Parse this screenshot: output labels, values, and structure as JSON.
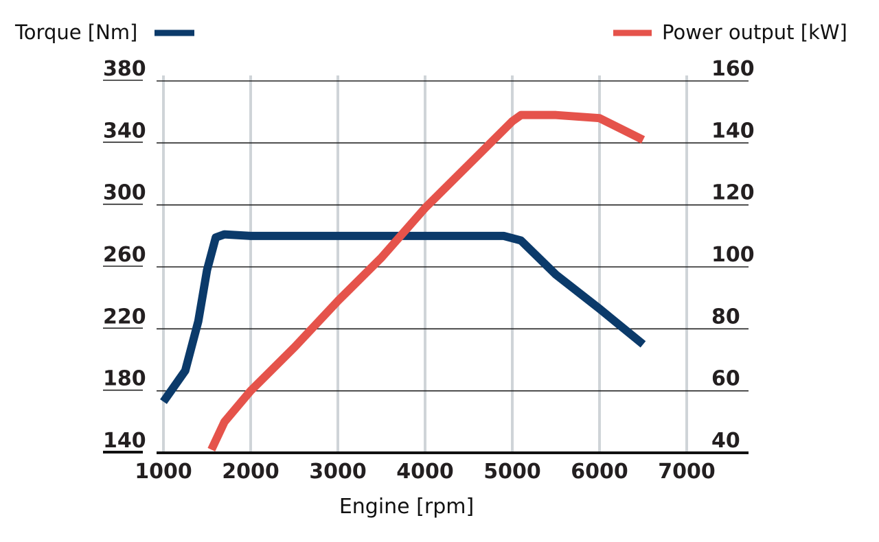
{
  "chart_data": {
    "type": "line",
    "xlabel": "Engine [rpm]",
    "x_ticks": [
      "1000",
      "2000",
      "3000",
      "4000",
      "5000",
      "6000",
      "7000"
    ],
    "xlim": [
      900,
      7100
    ],
    "y_left": {
      "label": "Torque [Nm]",
      "ticks": [
        "140",
        "180",
        "220",
        "260",
        "300",
        "340",
        "380"
      ],
      "ylim": [
        140,
        380
      ]
    },
    "y_right": {
      "label": "Power output [kW]",
      "ticks": [
        "40",
        "60",
        "80",
        "100",
        "120",
        "140",
        "160"
      ],
      "ylim": [
        40,
        160
      ]
    },
    "grid": {
      "vertical": true,
      "horizontal": true
    },
    "legend": {
      "left": "top-left",
      "right": "top-right"
    },
    "series": [
      {
        "name": "Torque [Nm]",
        "axis": "left",
        "color": "#0b3a6a",
        "x": [
          1000,
          1250,
          1400,
          1500,
          1600,
          1700,
          2000,
          3000,
          4000,
          4900,
          5100,
          5500,
          6000,
          6500
        ],
        "y": [
          173,
          193,
          225,
          258,
          279,
          281,
          280,
          280,
          280,
          280,
          277,
          255,
          233,
          210
        ]
      },
      {
        "name": "Power output [kW]",
        "axis": "right",
        "color": "#e5534b",
        "x": [
          1550,
          1700,
          2000,
          2500,
          3000,
          3500,
          4000,
          4500,
          5000,
          5100,
          5500,
          6000,
          6500
        ],
        "y": [
          41,
          50,
          60,
          74,
          89,
          103,
          119,
          133,
          147,
          149,
          149,
          148,
          141
        ]
      }
    ]
  }
}
